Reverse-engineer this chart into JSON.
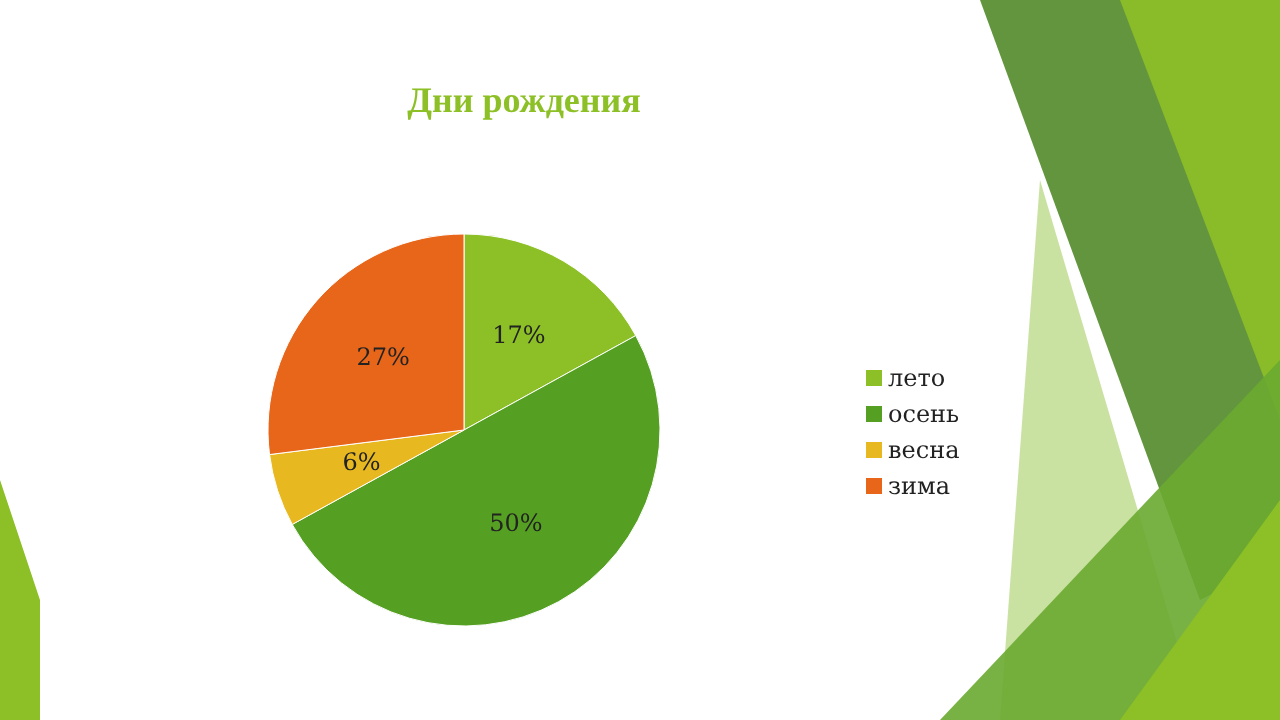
{
  "chart_data": {
    "type": "pie",
    "title": "Дни рождения",
    "categories": [
      "лето",
      "осень",
      "весна",
      "зима"
    ],
    "values": [
      17,
      50,
      6,
      27
    ],
    "colors": [
      "#8dc026",
      "#55a022",
      "#e8b820",
      "#e8661a"
    ],
    "value_labels": [
      "17%",
      "50%",
      "6%",
      "27%"
    ],
    "legend": "right"
  }
}
